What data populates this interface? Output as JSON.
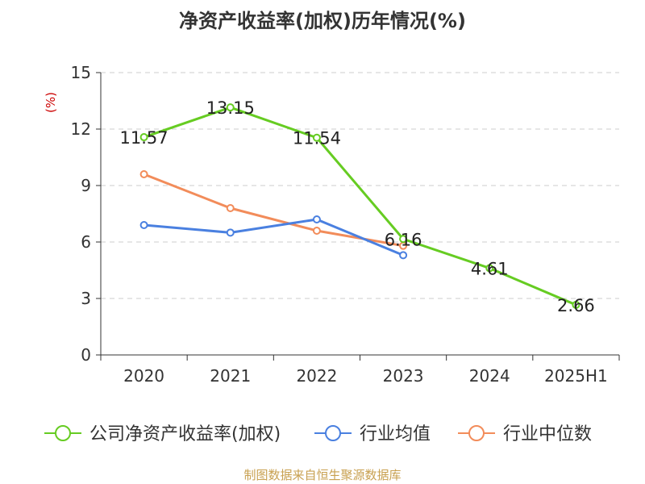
{
  "chart_data": {
    "type": "line",
    "title": "净资产收益率(加权)历年情况(%)",
    "ylabel": "(%)",
    "xlabel": "",
    "categories": [
      "2020",
      "2021",
      "2022",
      "2023",
      "2024",
      "2025H1"
    ],
    "ylim": [
      0,
      15
    ],
    "yticks": [
      0,
      3,
      6,
      9,
      12,
      15
    ],
    "grid": true,
    "legend_position": "bottom",
    "series": [
      {
        "name": "公司净资产收益率(加权)",
        "color": "#66cc22",
        "values": [
          11.57,
          13.15,
          11.54,
          6.16,
          4.61,
          2.66
        ],
        "labels": [
          "11.57",
          "13.15",
          "11.54",
          "6.16",
          "4.61",
          "2.66"
        ]
      },
      {
        "name": "行业均值",
        "color": "#4a80e0",
        "values": [
          6.9,
          6.5,
          7.2,
          5.3,
          null,
          null
        ]
      },
      {
        "name": "行业中位数",
        "color": "#f28c5a",
        "values": [
          9.6,
          7.8,
          6.6,
          5.8,
          null,
          null
        ]
      }
    ]
  },
  "source": "制图数据来自恒生聚源数据库"
}
